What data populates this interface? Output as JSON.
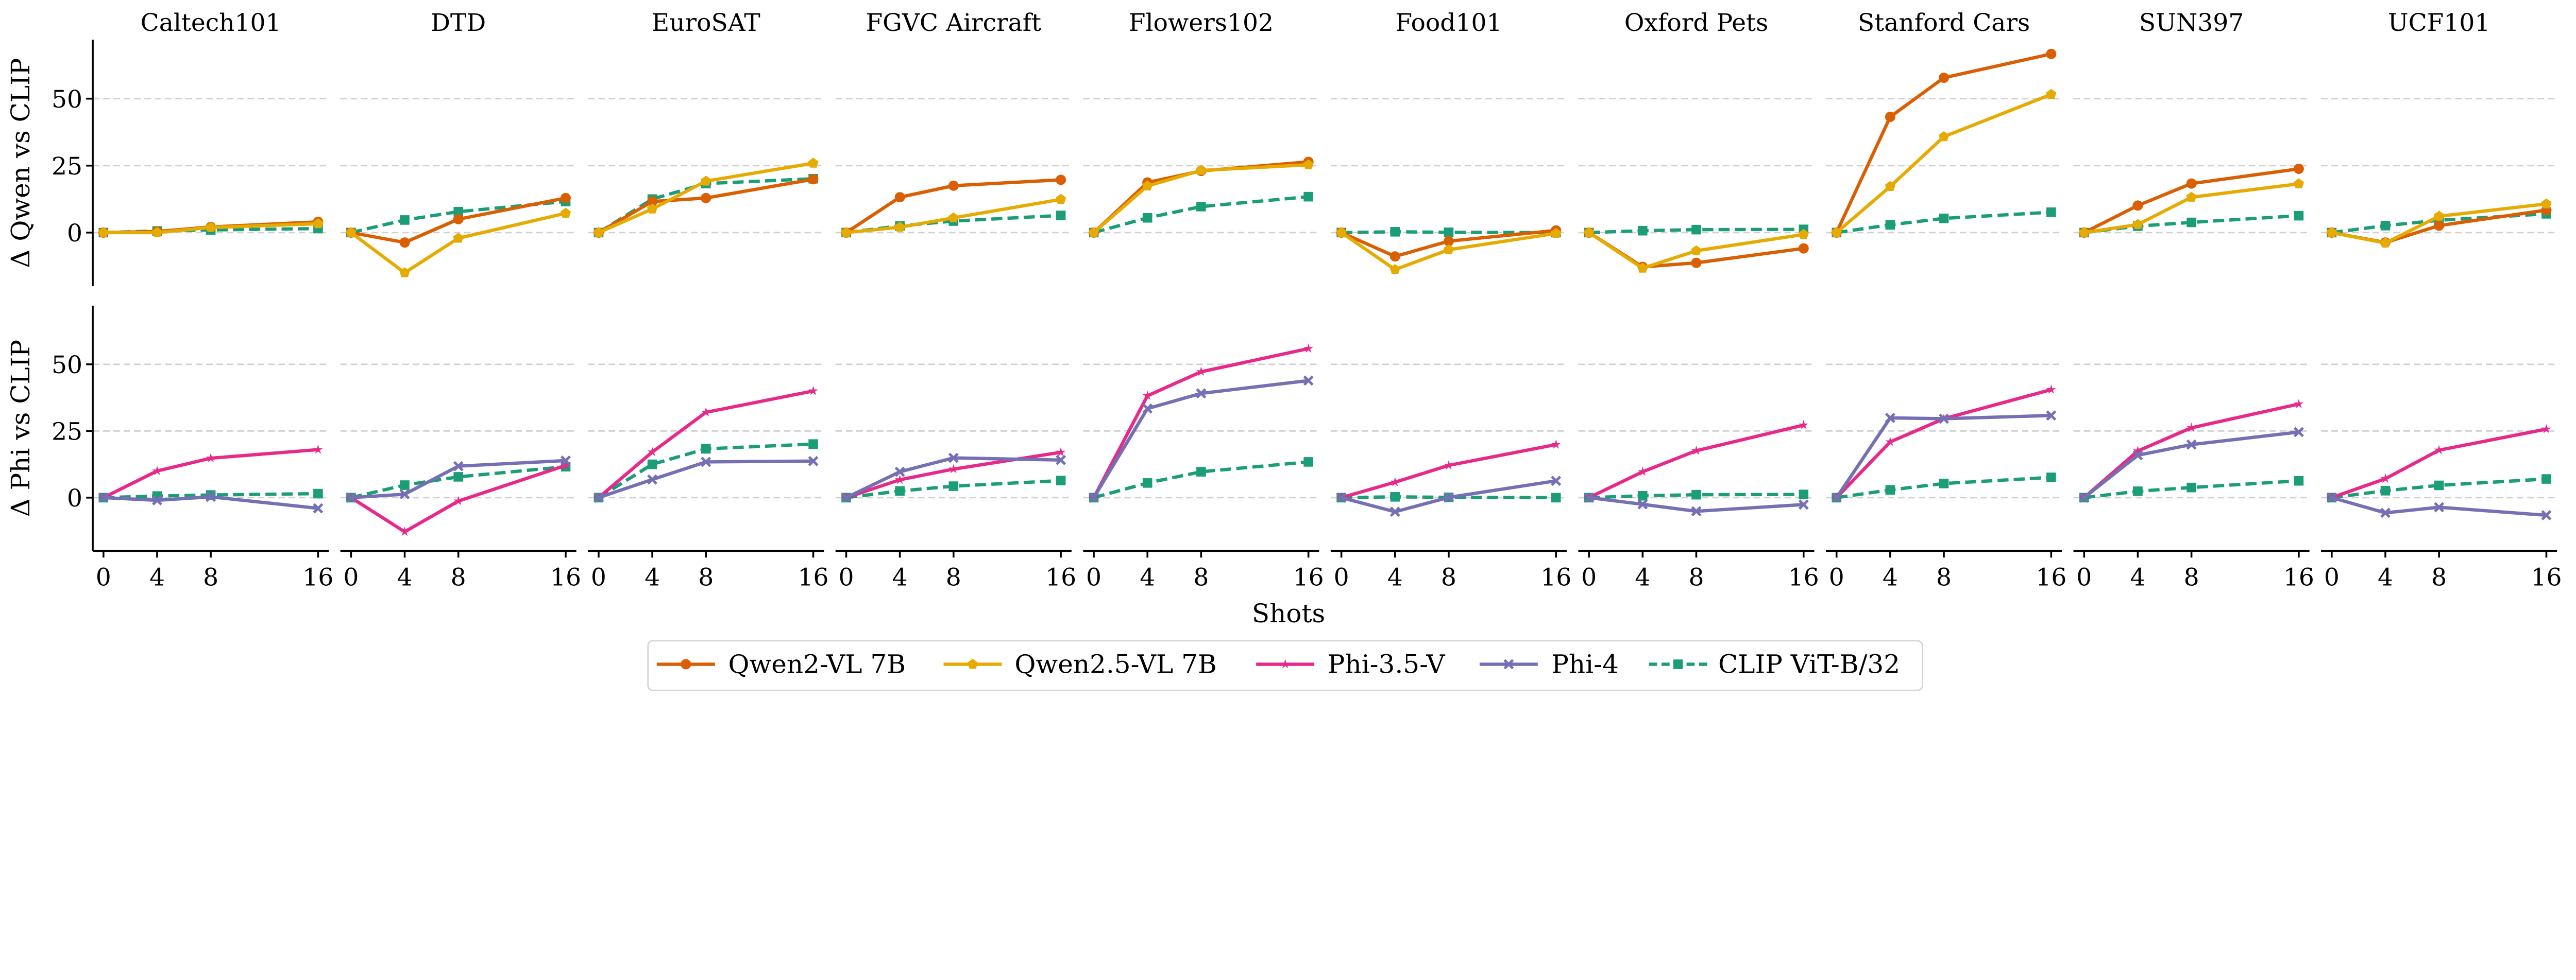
{
  "chart_data": {
    "type": "line",
    "x": [
      0,
      4,
      8,
      16
    ],
    "xticks": [
      "0",
      "4",
      "8",
      "16"
    ],
    "yticks": [
      "0",
      "25",
      "50"
    ],
    "ylim": [
      -20,
      72
    ],
    "xlabel": "Shots",
    "row_ylabels": [
      "Δ Qwen vs CLIP",
      "Δ Phi vs CLIP"
    ],
    "grid": true,
    "legend_placement": "bottom-center",
    "series": {
      "qwen2": {
        "name": "Qwen2-VL 7B",
        "color": "#d95f02",
        "marker": "circle",
        "dashed": false,
        "row": 0
      },
      "qwen25": {
        "name": "Qwen2.5-VL 7B",
        "color": "#e6ab02",
        "marker": "pentagon",
        "dashed": false,
        "row": 0
      },
      "phi35": {
        "name": "Phi-3.5-V",
        "color": "#e7298a",
        "marker": "star",
        "dashed": false,
        "row": 1
      },
      "phi4": {
        "name": "Phi-4",
        "color": "#7570b3",
        "marker": "x",
        "dashed": false,
        "row": 1
      },
      "clip": {
        "name": "CLIP ViT-B/32",
        "color": "#1b9e77",
        "marker": "square",
        "dashed": true,
        "row": "both"
      }
    },
    "legend_order": [
      "qwen2",
      "qwen25",
      "phi35",
      "phi4",
      "clip"
    ],
    "panels": [
      {
        "title": "Caltech101",
        "qwen2": [
          0,
          0.4,
          2.1,
          4.0
        ],
        "qwen25": [
          0,
          0,
          1.9,
          3.3
        ],
        "phi35": [
          0,
          10,
          14.8,
          18
        ],
        "phi4": [
          0,
          -1,
          0.3,
          -4
        ],
        "clip": [
          0,
          0.6,
          1.0,
          1.5
        ]
      },
      {
        "title": "DTD",
        "qwen2": [
          0,
          -3.7,
          5,
          12.9
        ],
        "qwen25": [
          0,
          -15,
          -2.1,
          7.2
        ],
        "phi35": [
          0,
          -12.8,
          -1.3,
          12.1
        ],
        "phi4": [
          0,
          1.3,
          11.8,
          13.9
        ],
        "clip": [
          0,
          4.7,
          7.8,
          11.6
        ]
      },
      {
        "title": "EuroSAT",
        "qwen2": [
          0,
          11.6,
          12.9,
          19.9
        ],
        "qwen25": [
          0,
          8.8,
          19.2,
          25.9
        ],
        "phi35": [
          0,
          17.1,
          32,
          40
        ],
        "phi4": [
          0,
          6.8,
          13.4,
          13.7
        ],
        "clip": [
          0,
          12.5,
          18.3,
          20.1
        ]
      },
      {
        "title": "FGVC Aircraft",
        "qwen2": [
          0,
          13.2,
          17.5,
          19.7
        ],
        "qwen25": [
          0,
          2,
          5.5,
          12.4
        ],
        "phi35": [
          0,
          6.7,
          10.7,
          17
        ],
        "phi4": [
          0,
          9.7,
          14.9,
          14.1
        ],
        "clip": [
          0,
          2.5,
          4.3,
          6.4
        ]
      },
      {
        "title": "Flowers102",
        "qwen2": [
          0,
          18.7,
          23,
          26.4
        ],
        "qwen25": [
          0,
          17.4,
          23.2,
          25.3
        ],
        "phi35": [
          0,
          38.2,
          47.2,
          55.9
        ],
        "phi4": [
          0,
          33.4,
          39.1,
          43.9
        ],
        "clip": [
          0,
          5.5,
          9.7,
          13.4
        ]
      },
      {
        "title": "Food101",
        "qwen2": [
          0,
          -8.9,
          -3.2,
          0.8
        ],
        "qwen25": [
          0,
          -13.8,
          -6.4,
          -0.3
        ],
        "phi35": [
          0,
          5.8,
          12.1,
          19.9
        ],
        "phi4": [
          0,
          -5.3,
          0.1,
          6.3
        ],
        "clip": [
          0,
          0.3,
          0.1,
          0
        ]
      },
      {
        "title": "Oxford Pets",
        "qwen2": [
          0,
          -12.8,
          -11.3,
          -5.9
        ],
        "qwen25": [
          0,
          -13.3,
          -6.8,
          -0.7
        ],
        "phi35": [
          0,
          9.7,
          17.6,
          27.2
        ],
        "phi4": [
          0,
          -2.5,
          -5.1,
          -2.6
        ],
        "clip": [
          0,
          0.7,
          1.1,
          1.2
        ]
      },
      {
        "title": "Stanford Cars",
        "qwen2": [
          0,
          43.2,
          57.8,
          66.7
        ],
        "qwen25": [
          0,
          17.2,
          35.8,
          51.6
        ],
        "phi35": [
          0,
          20.9,
          29.6,
          40.5
        ],
        "phi4": [
          0,
          29.9,
          29.6,
          30.8
        ],
        "clip": [
          0,
          2.9,
          5.3,
          7.6
        ]
      },
      {
        "title": "SUN397",
        "qwen2": [
          0,
          10.1,
          18.3,
          23.8
        ],
        "qwen25": [
          0,
          3,
          13.2,
          18.2
        ],
        "phi35": [
          0,
          17.5,
          26.2,
          35.1
        ],
        "phi4": [
          0,
          15.9,
          19.9,
          24.6
        ],
        "clip": [
          0,
          2.4,
          3.8,
          6.3
        ]
      },
      {
        "title": "UCF101",
        "qwen2": [
          0,
          -3.7,
          2.6,
          8.4
        ],
        "qwen25": [
          0,
          -3.9,
          6.1,
          10.7
        ],
        "phi35": [
          0,
          7.1,
          17.8,
          25.7
        ],
        "phi4": [
          0,
          -5.7,
          -3.6,
          -6.6
        ],
        "clip": [
          0,
          2.6,
          4.6,
          7.0
        ]
      }
    ]
  }
}
